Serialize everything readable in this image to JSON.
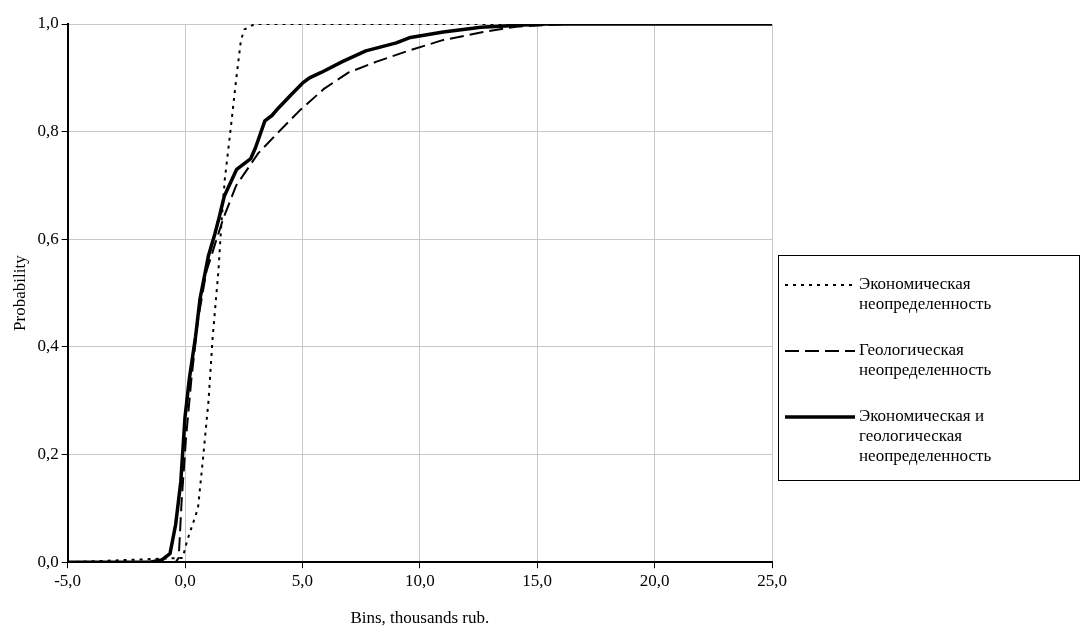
{
  "chart_data": {
    "type": "line",
    "xlabel": "Bins, thousands rub.",
    "ylabel": "Probability",
    "xlim": [
      -5,
      25
    ],
    "ylim": [
      0,
      1
    ],
    "xticks": [
      {
        "value": -5,
        "label": "-5,0"
      },
      {
        "value": 0,
        "label": "0,0"
      },
      {
        "value": 5,
        "label": "5,0"
      },
      {
        "value": 10,
        "label": "10,0"
      },
      {
        "value": 15,
        "label": "15,0"
      },
      {
        "value": 20,
        "label": "20,0"
      },
      {
        "value": 25,
        "label": "25,0"
      }
    ],
    "yticks": [
      {
        "value": 0,
        "label": "0,0"
      },
      {
        "value": 0.2,
        "label": "0,2"
      },
      {
        "value": 0.4,
        "label": "0,4"
      },
      {
        "value": 0.6,
        "label": "0,6"
      },
      {
        "value": 0.8,
        "label": "0,8"
      },
      {
        "value": 1,
        "label": "1,0"
      }
    ],
    "grid": true,
    "legend": "right",
    "marker": "none",
    "series": [
      {
        "name": "Экономическая неопределенность",
        "color": "#000000",
        "line_style": "dotted",
        "x": [
          -5,
          -0.1,
          0.09,
          0.55,
          0.76,
          1.0,
          1.18,
          1.42,
          1.55,
          1.69,
          1.93,
          2.16,
          2.38,
          2.53,
          2.97,
          25
        ],
        "values": [
          0,
          0.008,
          0.04,
          0.1,
          0.19,
          0.3,
          0.42,
          0.54,
          0.63,
          0.71,
          0.8,
          0.89,
          0.97,
          0.99,
          1,
          1
        ]
      },
      {
        "name": "Геологическая неопределенность",
        "color": "#000000",
        "line_style": "dashed",
        "x": [
          -5,
          -0.4,
          -0.27,
          -0.15,
          0.04,
          0.27,
          0.55,
          0.91,
          1.27,
          1.64,
          2.18,
          3.12,
          4.0,
          4.9,
          5.93,
          6.97,
          8.16,
          9.49,
          10.97,
          12.7,
          14.1,
          16.2,
          25
        ],
        "values": [
          0,
          0,
          0.008,
          0.11,
          0.23,
          0.34,
          0.45,
          0.54,
          0.59,
          0.64,
          0.7,
          0.76,
          0.8,
          0.84,
          0.88,
          0.91,
          0.93,
          0.95,
          0.97,
          0.985,
          0.995,
          1,
          1
        ]
      },
      {
        "name": "Экономическая и геологическая неопределенность",
        "color": "#000000",
        "line_style": "solid",
        "x": [
          -5,
          -1.5,
          -1.0,
          -0.64,
          -0.4,
          -0.18,
          0,
          0.18,
          0.45,
          0.64,
          1.0,
          1.27,
          1.45,
          1.67,
          2.2,
          2.8,
          3.0,
          3.4,
          3.7,
          4.0,
          4.55,
          5.0,
          5.3,
          5.8,
          6.7,
          7.7,
          9.0,
          9.6,
          11.0,
          12.6,
          13.9,
          15.4,
          25
        ],
        "values": [
          0,
          0,
          0.004,
          0.016,
          0.07,
          0.15,
          0.27,
          0.34,
          0.42,
          0.49,
          0.57,
          0.61,
          0.64,
          0.68,
          0.73,
          0.75,
          0.77,
          0.82,
          0.83,
          0.845,
          0.87,
          0.89,
          0.9,
          0.91,
          0.93,
          0.95,
          0.965,
          0.975,
          0.985,
          0.994,
          0.997,
          1,
          1
        ]
      }
    ]
  }
}
